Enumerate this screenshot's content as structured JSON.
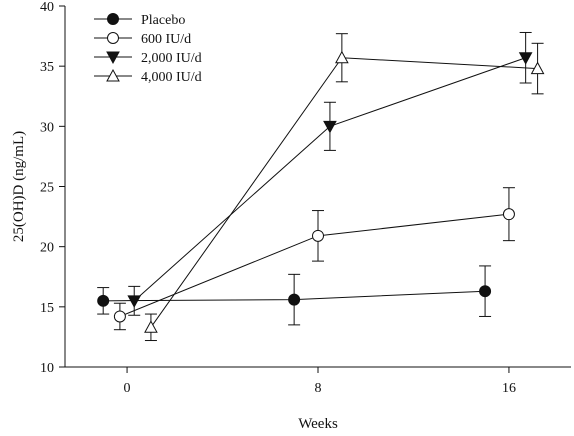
{
  "chart_data": {
    "type": "line",
    "title": "",
    "xlabel": "Weeks",
    "ylabel": "25(OH)D (ng/mL)",
    "x_ticks": [
      0,
      8,
      16
    ],
    "x_tick_labels": [
      "0",
      "8",
      "16"
    ],
    "xlim": [
      -2.6,
      18.6
    ],
    "y_ticks": [
      10,
      15,
      20,
      25,
      30,
      35,
      40
    ],
    "y_tick_labels": [
      "10",
      "15",
      "20",
      "25",
      "30",
      "35",
      "40"
    ],
    "ylim": [
      10,
      40
    ],
    "grid": false,
    "legend": "top-left",
    "series": [
      {
        "name": "Placebo",
        "marker": "circle-filled",
        "points": [
          {
            "x": -1,
            "y": 15.5,
            "err": 1.1
          },
          {
            "x": 7,
            "y": 15.6,
            "err": 2.1
          },
          {
            "x": 15,
            "y": 16.3,
            "err": 2.1
          }
        ]
      },
      {
        "name": "600 IU/d",
        "marker": "circle-open",
        "points": [
          {
            "x": -0.3,
            "y": 14.2,
            "err": 1.1
          },
          {
            "x": 8,
            "y": 20.9,
            "err": 2.1
          },
          {
            "x": 16,
            "y": 22.7,
            "err": 2.2
          }
        ]
      },
      {
        "name": "2,000 IU/d",
        "marker": "triangle-down-filled",
        "points": [
          {
            "x": 0.3,
            "y": 15.5,
            "err": 1.2
          },
          {
            "x": 8.5,
            "y": 30.0,
            "err": 2.0
          },
          {
            "x": 16.7,
            "y": 35.7,
            "err": 2.1
          }
        ]
      },
      {
        "name": "4,000 IU/d",
        "marker": "triangle-up-open",
        "points": [
          {
            "x": 1,
            "y": 13.3,
            "err": 1.1
          },
          {
            "x": 9,
            "y": 35.7,
            "err": 2.0
          },
          {
            "x": 17.2,
            "y": 34.8,
            "err": 2.1
          }
        ]
      }
    ]
  }
}
